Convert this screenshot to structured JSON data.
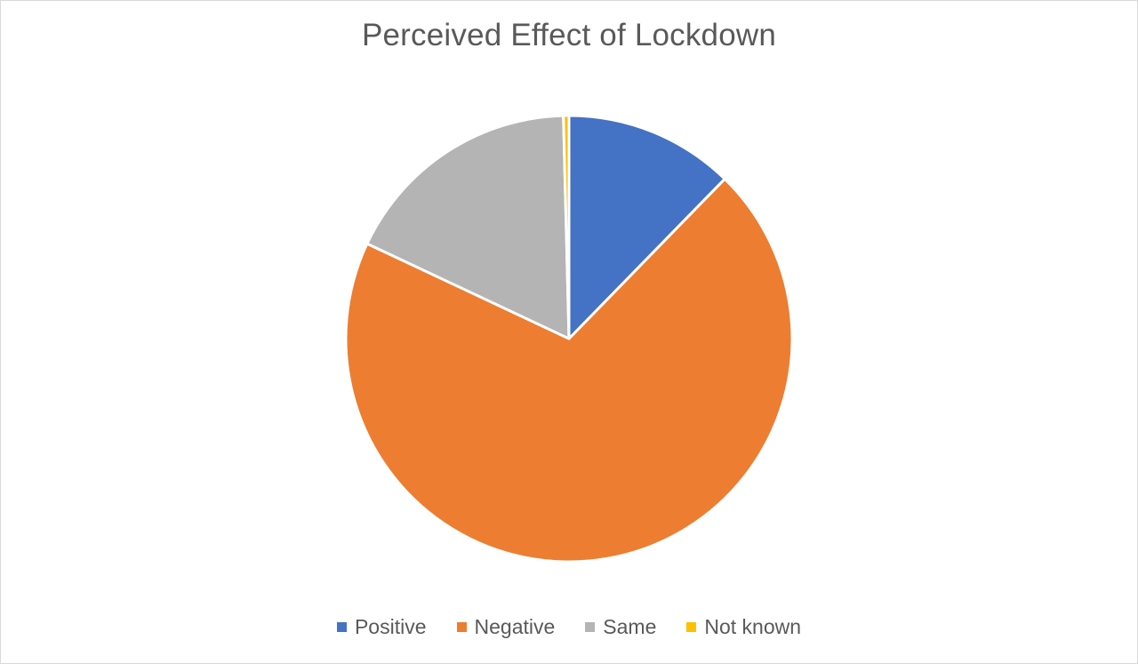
{
  "chart_data": {
    "type": "pie",
    "title": "Perceived Effect of Lockdown",
    "categories": [
      "Positive",
      "Negative",
      "Same",
      "Not known"
    ],
    "values": [
      12.3,
      69.7,
      17.6,
      0.4
    ],
    "colors": [
      "#4472c4",
      "#ed7d31",
      "#b4b4b4",
      "#ffc000"
    ],
    "legend_position": "bottom",
    "start_angle_deg": 0,
    "direction": "clockwise"
  }
}
